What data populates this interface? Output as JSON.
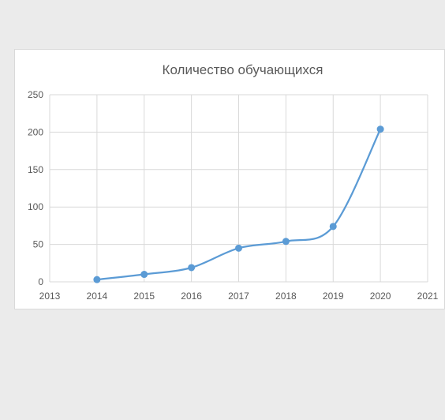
{
  "chart_data": {
    "type": "scatter",
    "title": "Количество обучающихся",
    "xlabel": "",
    "ylabel": "",
    "xlim": [
      2013,
      2021
    ],
    "ylim": [
      0,
      250
    ],
    "x_ticks": [
      "2013",
      "2014",
      "2015",
      "2016",
      "2017",
      "2018",
      "2019",
      "2020",
      "2021"
    ],
    "y_ticks": [
      "0",
      "50",
      "100",
      "150",
      "200",
      "250"
    ],
    "grid": true,
    "legend": "none",
    "smooth_line": true,
    "series": [
      {
        "x": [
          2014,
          2015,
          2016,
          2017,
          2018,
          2019,
          2020
        ],
        "y": [
          3,
          10,
          19,
          45,
          54,
          74,
          204
        ]
      }
    ],
    "colors": {
      "series": "#5b9bd5",
      "grid": "#d9d9d9",
      "text": "#595959"
    }
  }
}
